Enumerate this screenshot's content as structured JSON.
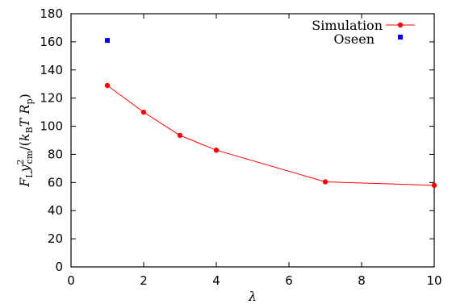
{
  "chart_data": {
    "type": "line",
    "xlabel": "λ",
    "ylabel": "F_L y_cm^2/(k_B T R_p)",
    "xlim": [
      0,
      10
    ],
    "ylim": [
      0,
      180
    ],
    "xticks": [
      "0",
      "2",
      "4",
      "6",
      "8",
      "10"
    ],
    "yticks": [
      "0",
      "20",
      "40",
      "60",
      "80",
      "100",
      "120",
      "140",
      "160",
      "180"
    ],
    "legend_position": "top-right",
    "grid": false,
    "series": [
      {
        "name": "Simulation",
        "style": "line-with-circle-markers",
        "color": "#ff0000",
        "x": [
          1,
          2,
          3,
          4,
          7,
          10
        ],
        "y": [
          129,
          110,
          93.5,
          83,
          60.5,
          58
        ]
      },
      {
        "name": "Oseen",
        "style": "square-markers",
        "color": "#0000ff",
        "x": [
          1
        ],
        "y": [
          161
        ]
      }
    ]
  }
}
